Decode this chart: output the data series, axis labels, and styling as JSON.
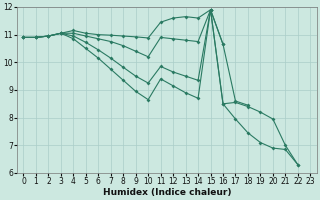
{
  "xlabel": "Humidex (Indice chaleur)",
  "background_color": "#cce8e0",
  "grid_color": "#aacec8",
  "line_color": "#2a7a62",
  "xlim": [
    -0.5,
    23.5
  ],
  "ylim": [
    6,
    12
  ],
  "line1_x": [
    0,
    1,
    2,
    3,
    4,
    5,
    6,
    7,
    8,
    9,
    10,
    11,
    12,
    13,
    14,
    15,
    16
  ],
  "line1_y": [
    10.9,
    10.9,
    10.95,
    11.05,
    11.15,
    11.05,
    11.0,
    10.98,
    10.95,
    10.92,
    10.88,
    11.45,
    11.6,
    11.65,
    11.6,
    11.9,
    10.65
  ],
  "line2_x": [
    0,
    1,
    2,
    3,
    4,
    5,
    6,
    7,
    8,
    9,
    10,
    11,
    12,
    13,
    14,
    15,
    16,
    17,
    18
  ],
  "line2_y": [
    10.9,
    10.9,
    10.95,
    11.05,
    11.05,
    10.95,
    10.85,
    10.75,
    10.6,
    10.4,
    10.2,
    10.9,
    10.85,
    10.8,
    10.75,
    11.9,
    10.65,
    8.6,
    8.45
  ],
  "line3_x": [
    0,
    1,
    2,
    3,
    4,
    5,
    6,
    7,
    8,
    9,
    10,
    11,
    12,
    13,
    14,
    15,
    16,
    17,
    18,
    19,
    20,
    21,
    22
  ],
  "line3_y": [
    10.9,
    10.9,
    10.95,
    11.05,
    10.95,
    10.72,
    10.45,
    10.15,
    9.82,
    9.5,
    9.25,
    9.85,
    9.65,
    9.5,
    9.35,
    11.9,
    8.5,
    8.55,
    8.4,
    8.2,
    7.95,
    7.0,
    6.3
  ],
  "line4_x": [
    0,
    1,
    2,
    3,
    4,
    5,
    6,
    7,
    8,
    9,
    10,
    11,
    12,
    13,
    14,
    15,
    16,
    17,
    18,
    19,
    20,
    21,
    22
  ],
  "line4_y": [
    10.9,
    10.9,
    10.95,
    11.05,
    10.85,
    10.5,
    10.15,
    9.75,
    9.35,
    8.95,
    8.65,
    9.4,
    9.15,
    8.9,
    8.7,
    11.9,
    8.5,
    7.95,
    7.45,
    7.1,
    6.9,
    6.85,
    6.3
  ]
}
